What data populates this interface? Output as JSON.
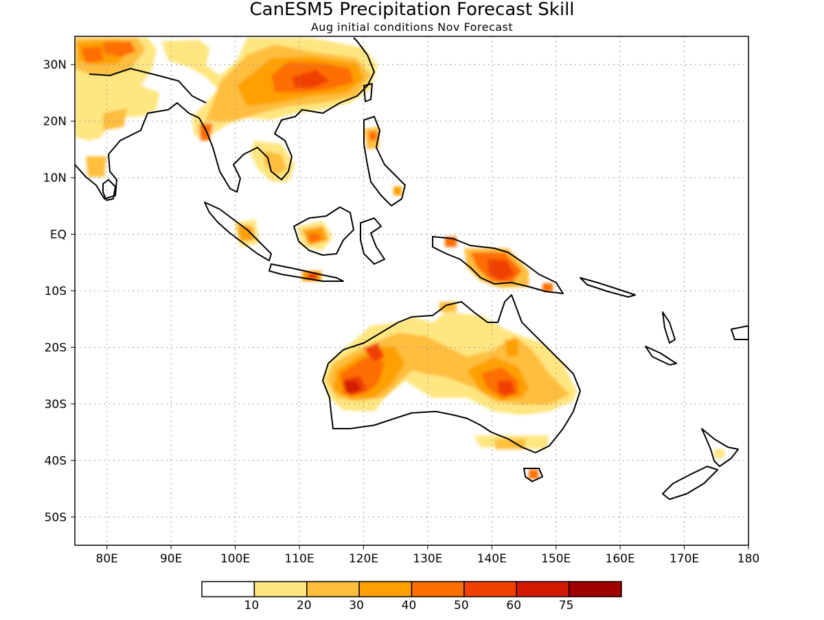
{
  "title": "CanESM5 Precipitation Forecast Skill",
  "subtitle": "Aug initial conditions  Nov Forecast",
  "map": {
    "lon_range": [
      75,
      180
    ],
    "lat_range": [
      -55,
      35
    ],
    "lon_ticks": [
      {
        "value": 80,
        "label": "80E"
      },
      {
        "value": 90,
        "label": "90E"
      },
      {
        "value": 100,
        "label": "100E"
      },
      {
        "value": 110,
        "label": "110E"
      },
      {
        "value": 120,
        "label": "120E"
      },
      {
        "value": 130,
        "label": "130E"
      },
      {
        "value": 140,
        "label": "140E"
      },
      {
        "value": 150,
        "label": "150E"
      },
      {
        "value": 160,
        "label": "160E"
      },
      {
        "value": 170,
        "label": "170E"
      },
      {
        "value": 180,
        "label": "180"
      }
    ],
    "lat_ticks": [
      {
        "value": 30,
        "label": "30N"
      },
      {
        "value": 20,
        "label": "20N"
      },
      {
        "value": 10,
        "label": "10N"
      },
      {
        "value": 0,
        "label": "EQ"
      },
      {
        "value": -10,
        "label": "10S"
      },
      {
        "value": -20,
        "label": "20S"
      },
      {
        "value": -30,
        "label": "30S"
      },
      {
        "value": -40,
        "label": "40S"
      },
      {
        "value": -50,
        "label": "50S"
      }
    ],
    "grid": true
  },
  "colorbar": {
    "colors": [
      "#ffffff",
      "#ffe680",
      "#ffbe3c",
      "#ffa000",
      "#ff6e00",
      "#f04000",
      "#d21a00",
      "#a00000"
    ],
    "labels": [
      "10",
      "20",
      "30",
      "40",
      "50",
      "60",
      "75"
    ]
  },
  "skill_regions": [
    {
      "region": "Indian subcontinent north",
      "lon": 80,
      "lat": 27,
      "level": 2
    },
    {
      "region": "Nepal",
      "lon": 78,
      "lat": 31,
      "level": 4
    },
    {
      "region": "India central",
      "lon": 83,
      "lat": 20,
      "level": 1
    },
    {
      "region": "South China",
      "lon": 113,
      "lat": 27,
      "level": 4
    },
    {
      "region": "Indochina",
      "lon": 106,
      "lat": 14,
      "level": 2
    },
    {
      "region": "Sumatra",
      "lon": 101,
      "lat": 0,
      "level": 3
    },
    {
      "region": "Borneo",
      "lon": 112,
      "lat": 0,
      "level": 4
    },
    {
      "region": "Java",
      "lon": 112,
      "lat": -7.5,
      "level": 4
    },
    {
      "region": "New Guinea",
      "lon": 141,
      "lat": -6,
      "level": 4
    },
    {
      "region": "Western Australia",
      "lon": 118,
      "lat": -27,
      "level": 6
    },
    {
      "region": "Queensland interior",
      "lon": 142,
      "lat": -27,
      "level": 5
    },
    {
      "region": "Northern Australia",
      "lon": 130,
      "lat": -18,
      "level": 2
    },
    {
      "region": "Victoria",
      "lon": 145,
      "lat": -37,
      "level": 1
    },
    {
      "region": "Tasmania",
      "lon": 146,
      "lat": -42,
      "level": 4
    }
  ]
}
